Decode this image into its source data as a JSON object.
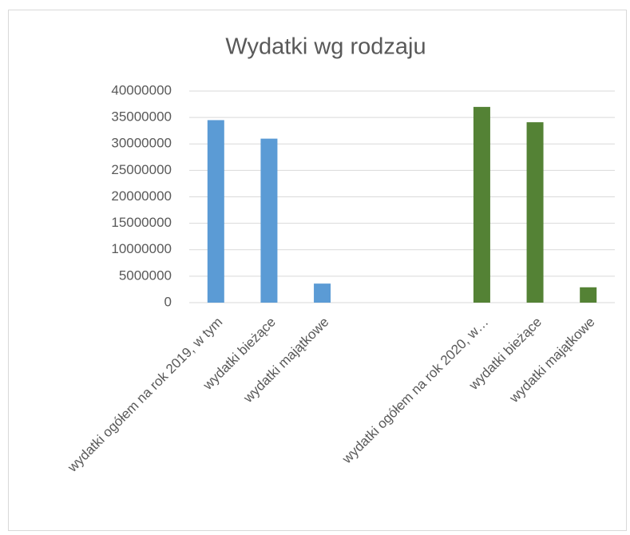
{
  "chart_data": {
    "type": "bar",
    "title": "Wydatki wg rodzaju",
    "categories": [
      "wydatki ogółem na rok 2019, w tym",
      "wydatki bieżące",
      "wydatki majątkowe",
      null,
      null,
      "wydatki ogółem na rok 2020, w…",
      "wydatki bieżące",
      "wydatki majątkowe"
    ],
    "values": [
      34500000,
      31000000,
      3600000,
      null,
      null,
      37000000,
      34100000,
      2900000
    ],
    "colors": [
      "#5b9bd5",
      "#5b9bd5",
      "#5b9bd5",
      null,
      null,
      "#548235",
      "#548235",
      "#548235"
    ],
    "ylim": [
      0,
      40000000
    ],
    "yticks": [
      0,
      5000000,
      10000000,
      15000000,
      20000000,
      25000000,
      30000000,
      35000000,
      40000000
    ],
    "grid": true
  }
}
